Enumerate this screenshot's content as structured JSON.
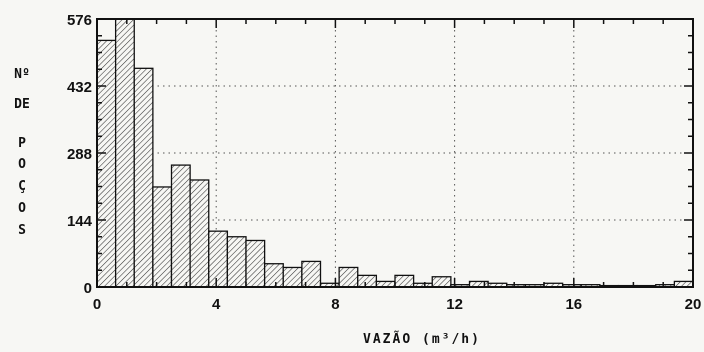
{
  "chart_data": {
    "type": "bar",
    "xlabel": "VAZÃO (m³/h)",
    "ylabel_lines": [
      "Nº",
      "DE",
      "P",
      "O",
      "Ç",
      "O",
      "S"
    ],
    "bin_width": 1,
    "x_start": 0,
    "values": [
      530,
      576,
      470,
      215,
      262,
      230,
      120,
      108,
      100,
      50,
      42,
      55,
      8,
      42,
      25,
      12,
      25,
      8,
      22,
      5,
      12,
      8,
      5,
      5,
      8,
      5,
      5,
      3,
      3,
      3,
      5,
      12
    ],
    "xlim": [
      0,
      20
    ],
    "ylim": [
      0,
      576
    ],
    "xticks": [
      "0",
      "4",
      "8",
      "12",
      "16",
      "20"
    ],
    "yticks": [
      "0",
      "144",
      "288",
      "432",
      "576"
    ],
    "grid": "dotted",
    "fill": "hatched"
  },
  "colors": {
    "ink": "#111111",
    "paper": "#f7f7f4"
  }
}
